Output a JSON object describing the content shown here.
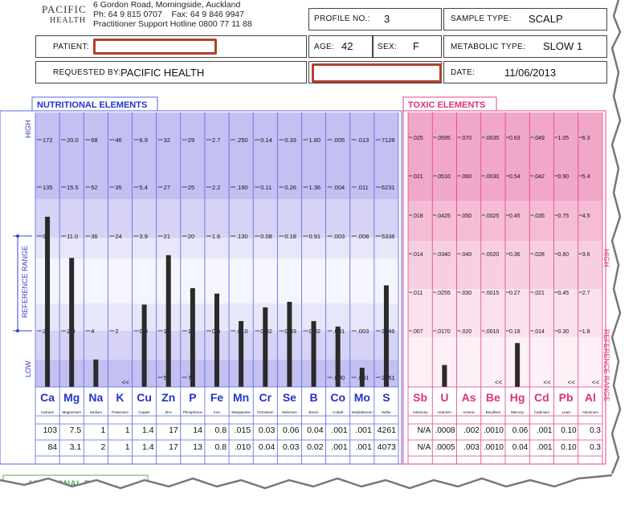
{
  "company": {
    "name_line1": "PACIFIC",
    "name_line2": "HEALTH",
    "address": "6 Gordon Road, Morningside, Auckland",
    "phone": "Ph: 64 9 815 0707",
    "fax": "Fax: 64 9 846 9947",
    "hotline": "Practitioner Support Hotline 0800 77 11 88"
  },
  "header": {
    "profile_label": "PROFILE NO.:",
    "profile_value": "3",
    "sample_label": "SAMPLE TYPE:",
    "sample_value": "SCALP",
    "patient_label": "PATIENT:",
    "age_label": "AGE:",
    "age_value": "42",
    "sex_label": "SEX:",
    "sex_value": "F",
    "metabolic_label": "METABOLIC TYPE:",
    "metabolic_value": "SLOW 1",
    "requested_label": "REQUESTED BY:",
    "requested_value": "PACIFIC HEALTH",
    "date_label": "DATE:",
    "date_value": "11/06/2013"
  },
  "nutritional": {
    "title": "NUTRITIONAL  ELEMENTS",
    "axis_high": "HIGH",
    "axis_low": "LOW",
    "axis_ref": "REFERENCE RANGE",
    "columns": [
      {
        "symbol": "Ca",
        "name": "Calcium",
        "ticks": [
          "172",
          "135",
          "97",
          "22"
        ],
        "r1": "103",
        "r2": "84",
        "level": 0.62
      },
      {
        "symbol": "Mg",
        "name": "Magnesium",
        "ticks": [
          "20.0",
          "15.5",
          "11.0",
          "2.0"
        ],
        "r1": "7.5",
        "r2": "3.1",
        "level": 0.47
      },
      {
        "symbol": "Na",
        "name": "Sodium",
        "ticks": [
          "68",
          "52",
          "36",
          "4"
        ],
        "r1": "1",
        "r2": "2",
        "level": 0.1
      },
      {
        "symbol": "K",
        "name": "Potassium",
        "ticks": [
          "46",
          "35",
          "24",
          "2"
        ],
        "r1": "1",
        "r2": "1",
        "level": 0.0,
        "below": "<<"
      },
      {
        "symbol": "Cu",
        "name": "Copper",
        "ticks": [
          "6.9",
          "5.4",
          "3.9",
          "0.9"
        ],
        "r1": "1.4",
        "r2": "1.4",
        "level": 0.3
      },
      {
        "symbol": "Zn",
        "name": "Zinc",
        "ticks": [
          "32",
          "27",
          "21",
          "10"
        ],
        "r1": "17",
        "r2": "17",
        "level": 0.48,
        "low": "5"
      },
      {
        "symbol": "P",
        "name": "Phosphorus",
        "ticks": [
          "29",
          "25",
          "20",
          "11"
        ],
        "r1": "14",
        "r2": "13",
        "level": 0.36,
        "low": "7"
      },
      {
        "symbol": "Fe",
        "name": "Iron",
        "ticks": [
          "2.7",
          "2.2",
          "1.6",
          "0.5"
        ],
        "r1": "0.8",
        "r2": "0.8",
        "level": 0.34
      },
      {
        "symbol": "Mn",
        "name": "Manganese",
        "ticks": [
          ".250",
          ".190",
          ".130",
          ".010"
        ],
        "r1": ".015",
        "r2": ".010",
        "level": 0.24
      },
      {
        "symbol": "Cr",
        "name": "Chromium",
        "ticks": [
          "0.14",
          "0.11",
          "0.08",
          "0.02"
        ],
        "r1": "0.03",
        "r2": "0.04",
        "level": 0.29
      },
      {
        "symbol": "Se",
        "name": "Selenium",
        "ticks": [
          "0.33",
          "0.26",
          "0.18",
          "0.03"
        ],
        "r1": "0.06",
        "r2": "0.03",
        "level": 0.31
      },
      {
        "symbol": "B",
        "name": "Boron",
        "ticks": [
          "1.80",
          "1.36",
          "0.91",
          "0.02"
        ],
        "r1": "0.04",
        "r2": "0.02",
        "level": 0.24
      },
      {
        "symbol": "Co",
        "name": "Cobalt",
        "ticks": [
          ".005",
          ".004",
          ".003",
          ".001"
        ],
        "r1": ".001",
        "r2": ".001",
        "level": 0.22,
        "low": ".000"
      },
      {
        "symbol": "Mo",
        "name": "Molybdenum",
        "ticks": [
          ".013",
          ".011",
          ".008",
          ".003"
        ],
        "r1": ".001",
        "r2": ".001",
        "level": 0.07,
        "low": ".001"
      },
      {
        "symbol": "S",
        "name": "Sulfur",
        "ticks": [
          "7126",
          "6231",
          "5336",
          "3546"
        ],
        "r1": "4261",
        "r2": "4073",
        "level": 0.37,
        "low": "2651"
      }
    ]
  },
  "toxic": {
    "title": "TOXIC  ELEMENTS",
    "axis_high": "HIGH",
    "axis_ref": "REFERENCE RANGE",
    "columns": [
      {
        "symbol": "Sb",
        "name": "Antimony",
        "ticks": [
          ".025",
          ".021",
          ".018",
          ".014",
          ".011",
          ".007"
        ],
        "r1": "N/A",
        "r2": "N/A",
        "level": 0.0
      },
      {
        "symbol": "U",
        "name": "Uranium",
        "ticks": [
          ".0595",
          ".0510",
          ".0425",
          ".0340",
          ".0255",
          ".0170"
        ],
        "r1": ".0008",
        "r2": ".0005",
        "level": 0.01
      },
      {
        "symbol": "As",
        "name": "Arsenic",
        "ticks": [
          ".070",
          ".060",
          ".050",
          ".040",
          ".030",
          ".020"
        ],
        "r1": ".002",
        "r2": ".003",
        "level": 0.0
      },
      {
        "symbol": "Be",
        "name": "Beryllium",
        "ticks": [
          ".0035",
          ".0030",
          ".0025",
          ".0020",
          ".0015",
          ".0010"
        ],
        "r1": ".0010",
        "r2": ".0010",
        "level": 0.0,
        "below": "<<"
      },
      {
        "symbol": "Hg",
        "name": "Mercury",
        "ticks": [
          "0.63",
          "0.54",
          "0.45",
          "0.36",
          "0.27",
          "0.18"
        ],
        "r1": "0.06",
        "r2": "0.04",
        "level": 0.02
      },
      {
        "symbol": "Cd",
        "name": "Cadmium",
        "ticks": [
          ".049",
          ".042",
          ".035",
          ".028",
          ".021",
          ".014"
        ],
        "r1": ".001",
        "r2": ".001",
        "level": 0.0,
        "below": "<<"
      },
      {
        "symbol": "Pb",
        "name": "Lead",
        "ticks": [
          "1.05",
          "0.90",
          "0.75",
          "0.60",
          "0.45",
          "0.30"
        ],
        "r1": "0.10",
        "r2": "0.10",
        "level": 0.0,
        "below": "<<"
      },
      {
        "symbol": "Al",
        "name": "Aluminum",
        "ticks": [
          "6.3",
          "5.4",
          "4.5",
          "3.6",
          "2.7",
          "1.8"
        ],
        "r1": "0.3",
        "r2": "0.3",
        "level": 0.0,
        "below": "<<"
      }
    ]
  },
  "footer": {
    "section_label": "ADDITIONAL E"
  }
}
